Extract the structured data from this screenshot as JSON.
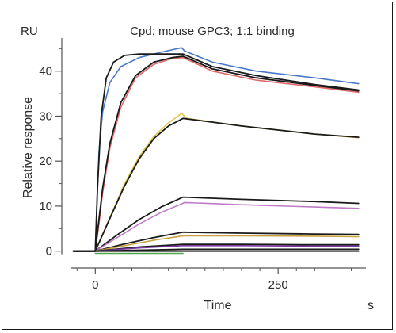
{
  "chart_data": {
    "type": "line",
    "title": "Cpd; mouse GPC3; 1:1 binding",
    "unit_label": "RU",
    "xlabel": "Time",
    "x_unit": "s",
    "ylabel": "Relative response",
    "xlim": [
      -35,
      370
    ],
    "ylim": [
      -2,
      47
    ],
    "x_ticks": [
      0,
      250
    ],
    "x_minor_ticks": [
      -25,
      25,
      50,
      75,
      100,
      125,
      150,
      175,
      200,
      225,
      275,
      300,
      325,
      350
    ],
    "y_ticks": [
      0,
      10,
      20,
      30,
      40
    ],
    "grid": false,
    "legend": "none",
    "association_end": 120,
    "series": [
      {
        "kind": "measured",
        "color": "#4a78c8",
        "points": [
          [
            -30,
            0
          ],
          [
            0,
            0
          ],
          [
            2,
            10
          ],
          [
            5,
            22
          ],
          [
            10,
            31
          ],
          [
            20,
            37.5
          ],
          [
            35,
            41
          ],
          [
            60,
            43
          ],
          [
            90,
            44.2
          ],
          [
            118,
            45.2
          ],
          [
            122,
            44.5
          ],
          [
            160,
            42
          ],
          [
            220,
            40
          ],
          [
            300,
            38.5
          ],
          [
            360,
            37.2
          ]
        ]
      },
      {
        "kind": "measured",
        "color": "#e06a6a",
        "points": [
          [
            -30,
            0
          ],
          [
            0,
            0
          ],
          [
            5,
            6
          ],
          [
            10,
            13
          ],
          [
            20,
            23
          ],
          [
            35,
            32
          ],
          [
            55,
            38.5
          ],
          [
            80,
            41.5
          ],
          [
            105,
            42.8
          ],
          [
            120,
            43
          ],
          [
            160,
            40
          ],
          [
            220,
            38
          ],
          [
            300,
            36.5
          ],
          [
            360,
            35.3
          ]
        ]
      },
      {
        "kind": "fit",
        "color": "#1a1a1a",
        "points": [
          [
            -30,
            0
          ],
          [
            0,
            0
          ],
          [
            3,
            14
          ],
          [
            8,
            30
          ],
          [
            15,
            38.5
          ],
          [
            25,
            42
          ],
          [
            40,
            43.5
          ],
          [
            60,
            43.8
          ],
          [
            120,
            43.8
          ],
          [
            160,
            41
          ],
          [
            220,
            39
          ],
          [
            300,
            37
          ],
          [
            360,
            35.8
          ]
        ]
      },
      {
        "kind": "fit",
        "color": "#1a1a1a",
        "points": [
          [
            -30,
            0
          ],
          [
            0,
            0
          ],
          [
            5,
            7
          ],
          [
            10,
            14
          ],
          [
            20,
            24
          ],
          [
            35,
            33
          ],
          [
            55,
            39
          ],
          [
            80,
            42
          ],
          [
            105,
            43
          ],
          [
            120,
            43.3
          ],
          [
            160,
            40.5
          ],
          [
            220,
            38.5
          ],
          [
            300,
            36.8
          ],
          [
            360,
            35.6
          ]
        ]
      },
      {
        "kind": "measured",
        "color": "#e0c84a",
        "points": [
          [
            -30,
            0
          ],
          [
            0,
            0
          ],
          [
            20,
            7.5
          ],
          [
            40,
            15
          ],
          [
            60,
            21
          ],
          [
            80,
            25.5
          ],
          [
            100,
            28.5
          ],
          [
            118,
            30.6
          ],
          [
            125,
            29.5
          ],
          [
            200,
            27.8
          ],
          [
            300,
            26
          ],
          [
            360,
            25.2
          ]
        ]
      },
      {
        "kind": "fit",
        "color": "#1a1a1a",
        "points": [
          [
            -30,
            0
          ],
          [
            0,
            0
          ],
          [
            20,
            7.3
          ],
          [
            40,
            14.5
          ],
          [
            60,
            20.5
          ],
          [
            80,
            25
          ],
          [
            100,
            27.8
          ],
          [
            120,
            29.5
          ],
          [
            200,
            27.8
          ],
          [
            300,
            26
          ],
          [
            360,
            25.3
          ]
        ]
      },
      {
        "kind": "fit",
        "color": "#1a1a1a",
        "points": [
          [
            -30,
            0
          ],
          [
            0,
            0
          ],
          [
            30,
            3.6
          ],
          [
            60,
            7
          ],
          [
            90,
            9.8
          ],
          [
            120,
            12
          ],
          [
            200,
            11.5
          ],
          [
            300,
            11
          ],
          [
            360,
            10.6
          ]
        ]
      },
      {
        "kind": "measured",
        "color": "#c07ac8",
        "points": [
          [
            -30,
            0
          ],
          [
            0,
            0
          ],
          [
            30,
            3
          ],
          [
            60,
            6
          ],
          [
            90,
            8.6
          ],
          [
            118,
            10.5
          ],
          [
            122,
            10.8
          ],
          [
            200,
            10.3
          ],
          [
            300,
            9.8
          ],
          [
            360,
            9.5
          ]
        ]
      },
      {
        "kind": "fit",
        "color": "#1a1a1a",
        "points": [
          [
            -30,
            0
          ],
          [
            0,
            0
          ],
          [
            40,
            1.6
          ],
          [
            80,
            3
          ],
          [
            120,
            4.2
          ],
          [
            200,
            4
          ],
          [
            300,
            3.8
          ],
          [
            360,
            3.7
          ]
        ]
      },
      {
        "kind": "measured",
        "color": "#c8a040",
        "points": [
          [
            -30,
            0
          ],
          [
            0,
            0
          ],
          [
            40,
            1.2
          ],
          [
            80,
            2.4
          ],
          [
            120,
            3.4
          ],
          [
            200,
            3.4
          ],
          [
            300,
            3.3
          ],
          [
            360,
            3.2
          ]
        ]
      },
      {
        "kind": "fit",
        "color": "#1a1a1a",
        "points": [
          [
            -30,
            0
          ],
          [
            0,
            0
          ],
          [
            60,
            0.9
          ],
          [
            120,
            1.5
          ],
          [
            200,
            1.5
          ],
          [
            300,
            1.4
          ],
          [
            360,
            1.4
          ]
        ]
      },
      {
        "kind": "measured",
        "color": "#7a3aa0",
        "points": [
          [
            -30,
            0
          ],
          [
            0,
            0
          ],
          [
            60,
            0.7
          ],
          [
            120,
            1.2
          ],
          [
            200,
            1.2
          ],
          [
            300,
            1.1
          ],
          [
            360,
            1.1
          ]
        ]
      },
      {
        "kind": "fit",
        "color": "#1a1a1a",
        "points": [
          [
            -30,
            0
          ],
          [
            0,
            0
          ],
          [
            120,
            0.4
          ],
          [
            200,
            0.4
          ],
          [
            360,
            0.4
          ]
        ]
      },
      {
        "kind": "measured",
        "color": "#4aa84a",
        "points": [
          [
            0,
            -0.5
          ],
          [
            60,
            -0.5
          ],
          [
            120,
            -0.5
          ]
        ]
      },
      {
        "kind": "fit",
        "color": "#1a1a1a",
        "points": [
          [
            -30,
            0
          ],
          [
            360,
            0
          ]
        ]
      }
    ]
  }
}
